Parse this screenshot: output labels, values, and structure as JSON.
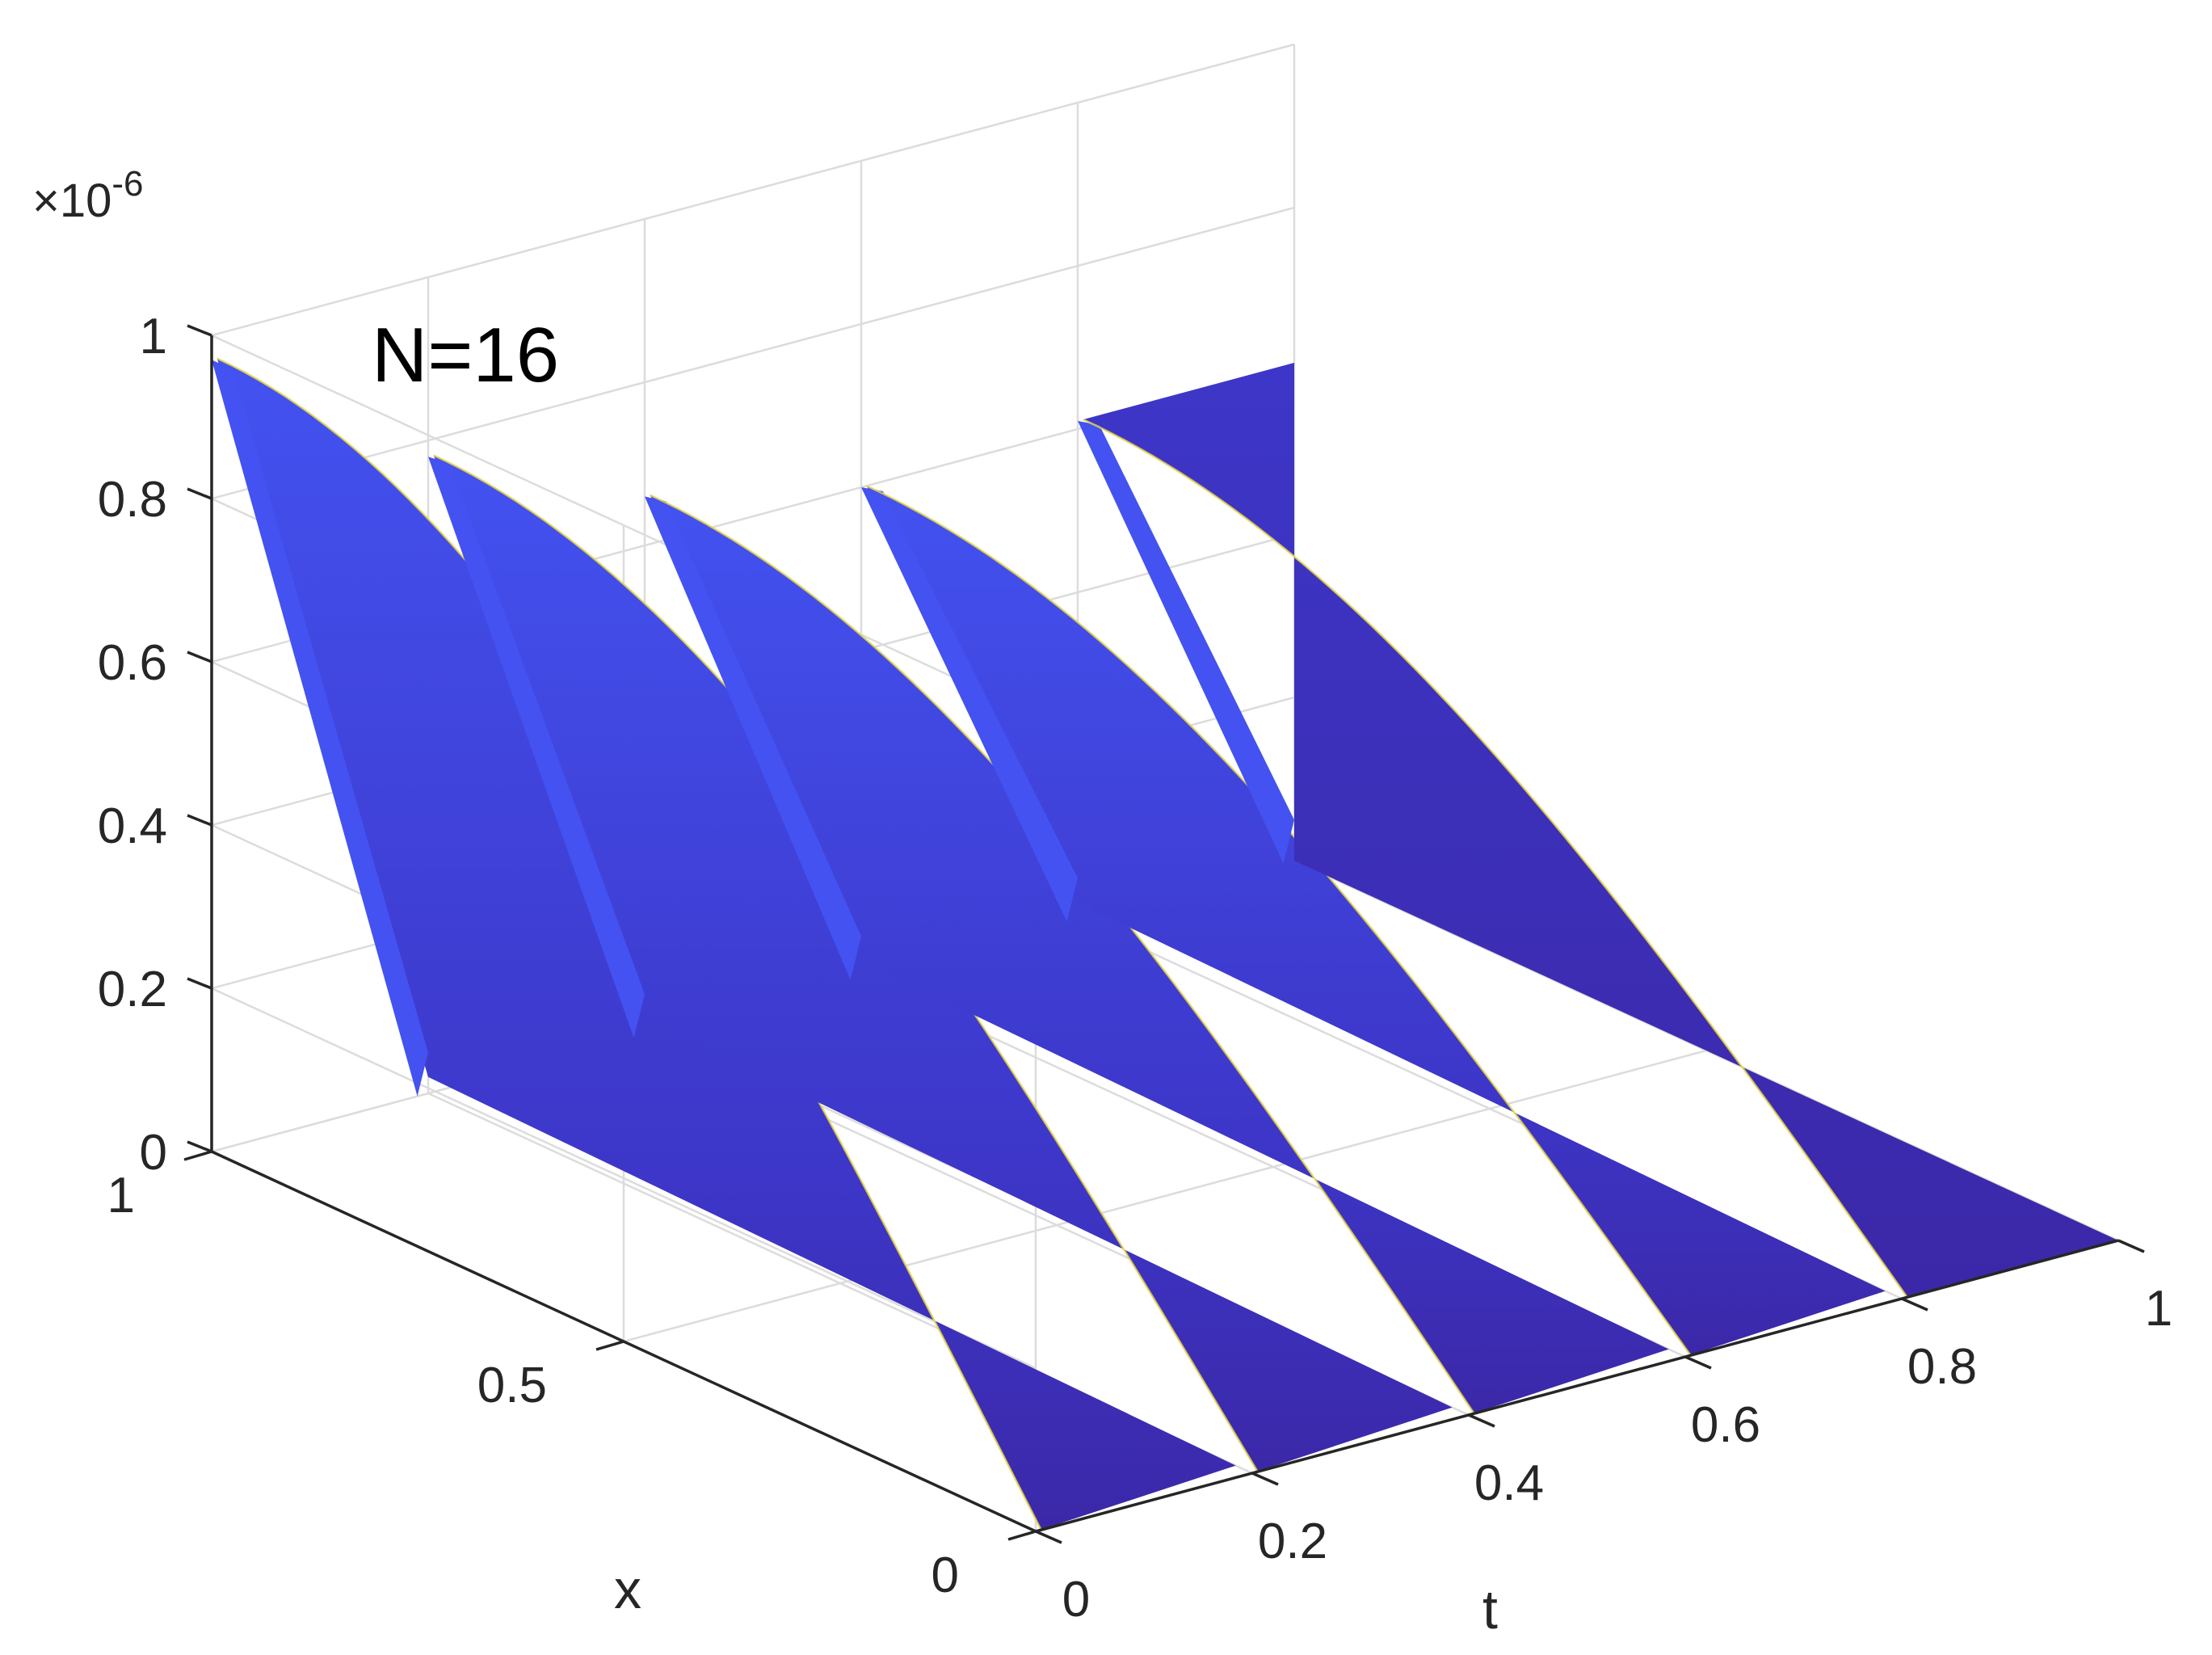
{
  "chart_data": {
    "type": "surface",
    "annotation": "N=16",
    "xlabel": "x",
    "tlabel": "t",
    "zlabel": "",
    "z_exponent_label": "×10",
    "z_exponent": "-6",
    "x_range": [
      0,
      1
    ],
    "t_range": [
      0,
      1
    ],
    "z_range": [
      0,
      1
    ],
    "x_ticks": [
      {
        "value": 0,
        "label": "0"
      },
      {
        "value": 0.5,
        "label": "0.5"
      },
      {
        "value": 1,
        "label": "1"
      }
    ],
    "t_ticks": [
      {
        "value": 0,
        "label": "0"
      },
      {
        "value": 0.2,
        "label": "0.2"
      },
      {
        "value": 0.4,
        "label": "0.4"
      },
      {
        "value": 0.6,
        "label": "0.6"
      },
      {
        "value": 0.8,
        "label": "0.8"
      },
      {
        "value": 1,
        "label": "1"
      }
    ],
    "z_ticks": [
      {
        "value": 0,
        "label": "0"
      },
      {
        "value": 0.2,
        "label": "0.2"
      },
      {
        "value": 0.4,
        "label": "0.4"
      },
      {
        "value": 0.6,
        "label": "0.6"
      },
      {
        "value": 0.8,
        "label": "0.8"
      },
      {
        "value": 1,
        "label": "1"
      }
    ],
    "surface_ridges": [
      {
        "t_start": 0.0,
        "peak_x": 1.0,
        "peak_z": 0.97
      },
      {
        "t_start": 0.2,
        "peak_x": 1.0,
        "peak_z": 0.78
      },
      {
        "t_start": 0.4,
        "peak_x": 1.0,
        "peak_z": 0.66
      },
      {
        "t_start": 0.6,
        "peak_x": 1.0,
        "peak_z": 0.6
      },
      {
        "t_start": 0.8,
        "peak_x": 1.0,
        "peak_z": 0.61
      }
    ],
    "colors": {
      "surface_light": "#4352f0",
      "surface_mid": "#3d36c8",
      "surface_dark": "#3b28a8",
      "edge": "#e8d84a",
      "grid": "#dcdcdc",
      "axis": "#262626"
    }
  }
}
